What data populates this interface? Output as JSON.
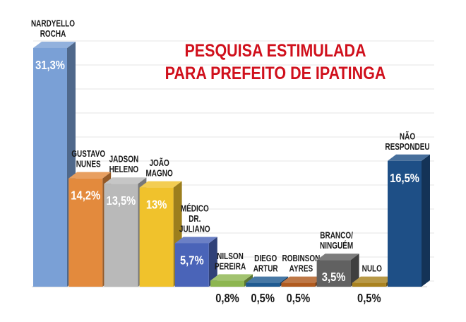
{
  "chart_data": {
    "type": "bar",
    "title_lines": [
      "PESQUISA ESTIMULADA",
      "PARA PREFEITO DE IPATINGA"
    ],
    "ylim": [
      0,
      35
    ],
    "grid": true,
    "bars": [
      {
        "label_lines": [
          "NARDYELLO",
          "ROCHA"
        ],
        "value": 31.3,
        "value_label": "31,3%",
        "color": "#7aa0d6"
      },
      {
        "label_lines": [
          "GUSTAVO",
          "NUNES"
        ],
        "value": 14.2,
        "value_label": "14,2%",
        "color": "#e38a3d"
      },
      {
        "label_lines": [
          "JADSON",
          "HELENO"
        ],
        "value": 13.5,
        "value_label": "13,5%",
        "color": "#b9b9b9"
      },
      {
        "label_lines": [
          "JOÃO",
          "MAGNO"
        ],
        "value": 13.0,
        "value_label": "13%",
        "color": "#f0c22c"
      },
      {
        "label_lines": [
          "MÉDICO",
          "DR.",
          "JULIANO"
        ],
        "value": 5.7,
        "value_label": "5,7%",
        "color": "#4a64b8"
      },
      {
        "label_lines": [
          "NILSON",
          "PEREIRA"
        ],
        "value": 0.8,
        "value_label": "0,8%",
        "color": "#8db650"
      },
      {
        "label_lines": [
          "DIEGO",
          "ARTUR"
        ],
        "value": 0.5,
        "value_label": "0,5%",
        "color": "#1f5a91"
      },
      {
        "label_lines": [
          "ROBINSON",
          "AYRES"
        ],
        "value": 0.5,
        "value_label": "0,5%",
        "color": "#b05a1e"
      },
      {
        "label_lines": [
          "BRANCO/",
          "NINGUÉM"
        ],
        "value": 3.5,
        "value_label": "3,5%",
        "color": "#616161"
      },
      {
        "label_lines": [
          "NULO"
        ],
        "value": 0.5,
        "value_label": "0,5%",
        "color": "#a9821f"
      },
      {
        "label_lines": [
          "NÃO",
          "RESPONDEU"
        ],
        "value": 16.5,
        "value_label": "16,5%",
        "color": "#1e4f86"
      }
    ]
  }
}
